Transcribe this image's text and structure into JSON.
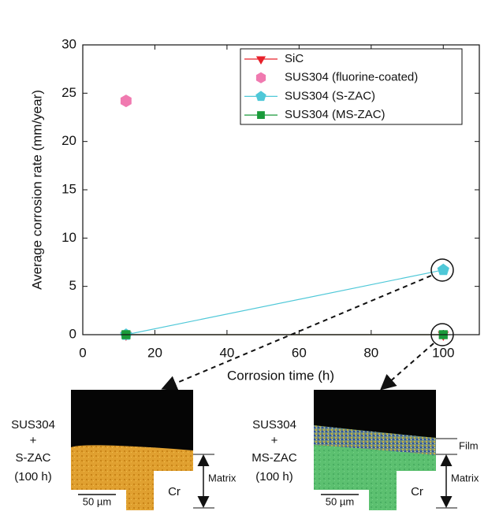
{
  "chart_data": {
    "type": "line",
    "xlabel": "Corrosion time (h)",
    "ylabel": "Average corrosion rate (mm/year)",
    "x": [
      12,
      100
    ],
    "xlim": [
      0,
      110
    ],
    "xticks": [
      0,
      20,
      40,
      60,
      80,
      100
    ],
    "ylim": [
      0,
      30
    ],
    "yticks": [
      0,
      5,
      10,
      15,
      20,
      25,
      30
    ],
    "series": [
      {
        "name": "SiC",
        "color": "#e8202a",
        "marker": "triangle-down",
        "line": true,
        "values": [
          0,
          0
        ]
      },
      {
        "name": "SUS304 (fluorine-coated)",
        "color": "#f07ab0",
        "marker": "hexagon",
        "line": false,
        "values": [
          24.2,
          null
        ]
      },
      {
        "name": "SUS304 (S-ZAC)",
        "color": "#4fc8d8",
        "marker": "pentagon",
        "line": true,
        "values": [
          0,
          6.7
        ]
      },
      {
        "name": "SUS304 (MS-ZAC)",
        "color": "#1a9a3a",
        "marker": "square",
        "line": true,
        "values": [
          0,
          0
        ]
      }
    ],
    "legend": "upper right",
    "insets": [
      {
        "label": [
          "SUS304",
          "+",
          "S-ZAC",
          "(100 h)"
        ],
        "scale_bar": "50 µm",
        "element": "Cr",
        "layers": [
          "Matrix"
        ]
      },
      {
        "label": [
          "SUS304",
          "+",
          "MS-ZAC",
          "(100 h)"
        ],
        "scale_bar": "50 µm",
        "element": "Cr",
        "layers": [
          "Film",
          "Matrix"
        ]
      }
    ]
  }
}
